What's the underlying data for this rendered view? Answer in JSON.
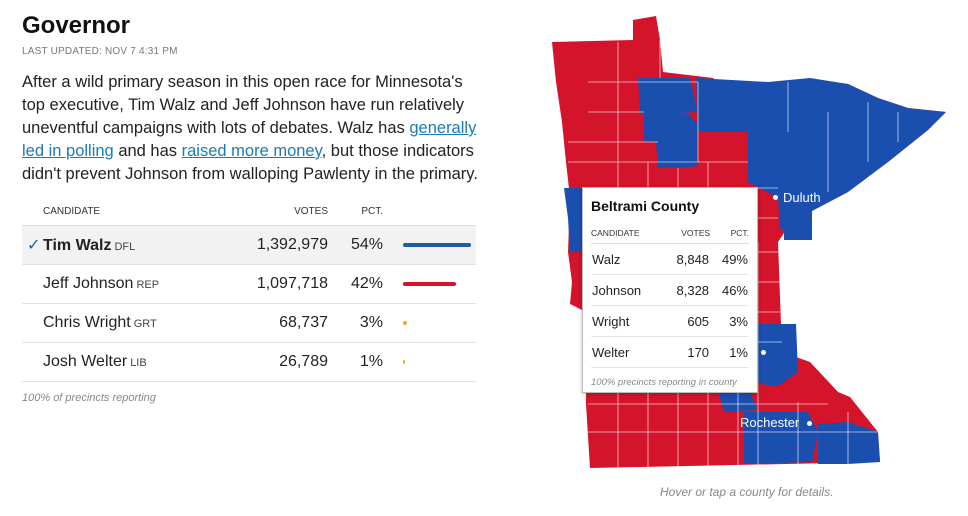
{
  "header": {
    "title": "Governor",
    "updated": "LAST UPDATED: NOV 7 4:31 PM"
  },
  "intro": {
    "text1": "After a wild primary season in this open race for Minnesota's top executive, Tim Walz and Jeff Johnson have run relatively uneventful campaigns with lots of debates. Walz has ",
    "link1": "generally led in polling",
    "text2": " and has ",
    "link2": "raised more money",
    "text3": ", but those indicators didn't prevent Johnson from walloping Pawlenty in the primary."
  },
  "results": {
    "headers": {
      "candidate": "CANDIDATE",
      "votes": "VOTES",
      "pct": "PCT."
    },
    "rows": [
      {
        "name": "Tim Walz",
        "party": "DFL",
        "votes": "1,392,979",
        "pct": "54%",
        "share": 0.54,
        "color": "#1a5ea8",
        "winner": true,
        "check": "✓"
      },
      {
        "name": "Jeff Johnson",
        "party": "REP",
        "votes": "1,097,718",
        "pct": "42%",
        "share": 0.42,
        "color": "#d4142a",
        "winner": false,
        "check": ""
      },
      {
        "name": "Chris Wright",
        "party": "GRT",
        "votes": "68,737",
        "pct": "3%",
        "share": 0.03,
        "color": "#f5a623",
        "winner": false,
        "check": ""
      },
      {
        "name": "Josh Welter",
        "party": "LIB",
        "votes": "26,789",
        "pct": "1%",
        "share": 0.01,
        "color": "#f5a623",
        "winner": false,
        "check": ""
      }
    ],
    "note": "100% of precincts reporting"
  },
  "map": {
    "colors": {
      "dfl": "#1a4fb0",
      "rep": "#d4142a"
    },
    "cities": {
      "duluth": "Duluth",
      "rochester": "Rochester"
    },
    "caption": "Hover or tap a county for details."
  },
  "tooltip": {
    "county": "Beltrami County",
    "headers": {
      "candidate": "CANDIDATE",
      "votes": "VOTES",
      "pct": "PCT."
    },
    "rows": [
      {
        "name": "Walz",
        "votes": "8,848",
        "pct": "49%"
      },
      {
        "name": "Johnson",
        "votes": "8,328",
        "pct": "46%"
      },
      {
        "name": "Wright",
        "votes": "605",
        "pct": "3%"
      },
      {
        "name": "Welter",
        "votes": "170",
        "pct": "1%"
      }
    ],
    "note": "100% precincts reporting in county"
  }
}
